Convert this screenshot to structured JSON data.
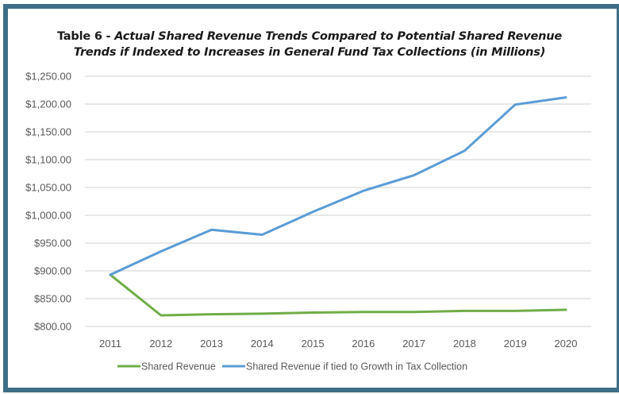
{
  "chart_data": {
    "type": "line",
    "title_prefix": "Table 6 - ",
    "title_line1_italic": "Actual Shared Revenue Trends Compared to Potential Shared Revenue",
    "title_line2_italic": "Trends if Indexed to Increases in General Fund Tax Collections (in Millions)",
    "xlabel": "",
    "ylabel": "",
    "categories": [
      "2011",
      "2012",
      "2013",
      "2014",
      "2015",
      "2016",
      "2017",
      "2018",
      "2019",
      "2020"
    ],
    "ylim": [
      800,
      1250
    ],
    "yticks": [
      800,
      850,
      900,
      950,
      1000,
      1050,
      1100,
      1150,
      1200,
      1250
    ],
    "ytick_labels": [
      "$800.00",
      "$850.00",
      "$900.00",
      "$950.00",
      "$1,000.00",
      "$1,050.00",
      "$1,100.00",
      "$1,150.00",
      "$1,200.00",
      "$1,250.00"
    ],
    "grid": true,
    "legend_position": "bottom",
    "series": [
      {
        "name": "Shared Revenue",
        "color": "#70ad47",
        "values": [
          893,
          820,
          822,
          823,
          825,
          826,
          826,
          828,
          828,
          830
        ]
      },
      {
        "name": "Shared Revenue if tied to Growth in Tax Collection",
        "color": "#5b9bd5",
        "values": [
          893,
          935,
          974,
          965,
          1006,
          1044,
          1072,
          1116,
          1199,
          1212
        ]
      }
    ]
  },
  "colors": {
    "frame": "#3e6e88",
    "grid": "#d9d9d9",
    "text": "#595959"
  }
}
